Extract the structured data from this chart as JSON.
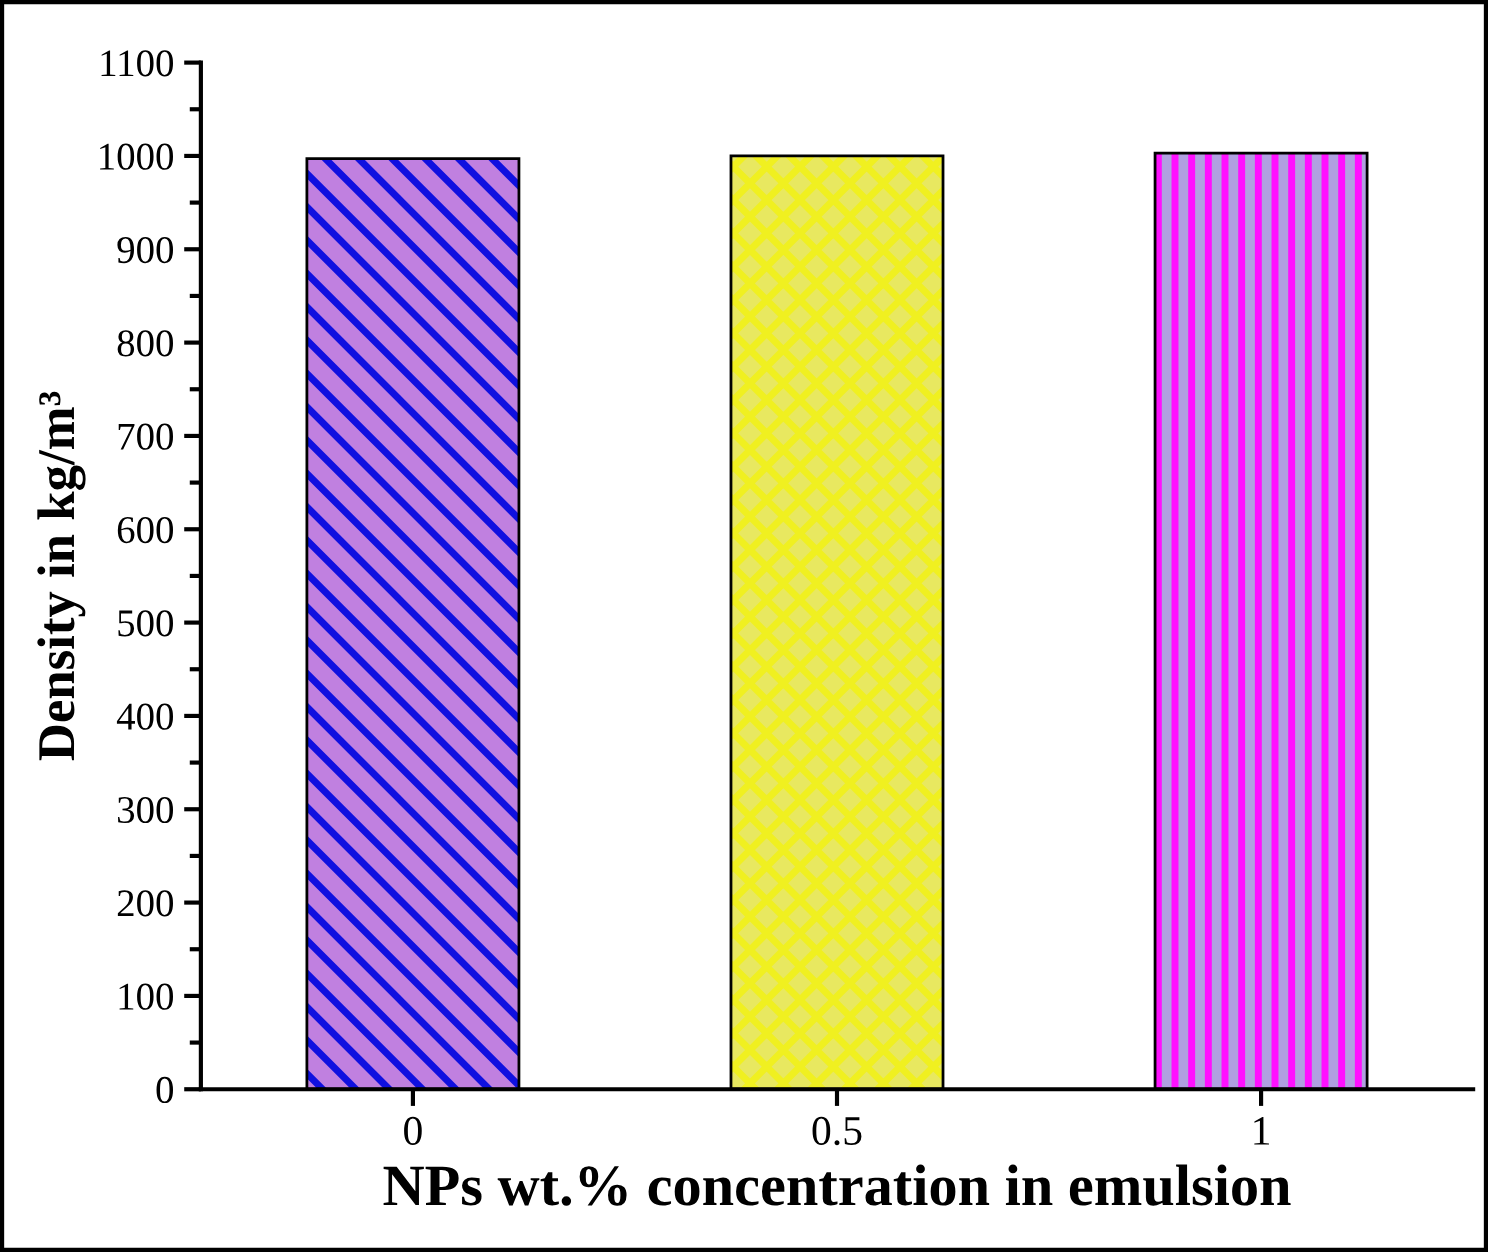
{
  "chart_data": {
    "type": "bar",
    "xlabel": "NPs wt.% concentration in emulsion",
    "ylabel": "Density in kg/m³",
    "categories": [
      "0",
      "0.5",
      "1"
    ],
    "values": [
      997,
      1000,
      1003
    ],
    "colors": [
      "#c080e0",
      "#e8e860",
      "#b0a0e0"
    ],
    "ylim": [
      0,
      1100
    ],
    "yticks": [
      0,
      100,
      200,
      300,
      400,
      500,
      600,
      700,
      800,
      900,
      1000,
      1100
    ],
    "grid": false,
    "legend": false
  }
}
